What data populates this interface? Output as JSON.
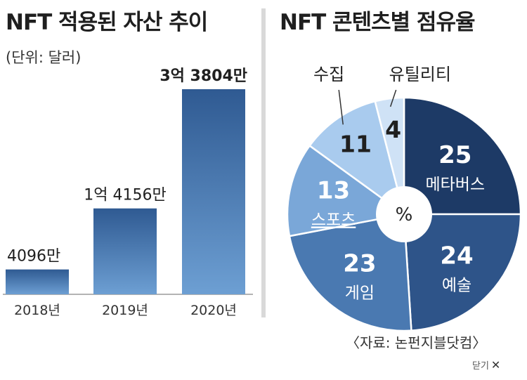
{
  "left_title": "NFT 적용된 자산 추이",
  "unit_label": "(단위: 달러)",
  "right_title": "NFT 콘텐츠별 점유율",
  "source": "〈자료: 논펀지블닷컴〉",
  "close_label": "닫기",
  "close_icon": "close-x-icon",
  "chart_data": [
    {
      "type": "bar",
      "title": "NFT 적용된 자산 추이",
      "unit": "달러",
      "categories": [
        "2018년",
        "2019년",
        "2020년"
      ],
      "values": [
        40960000,
        141560000,
        338040000
      ],
      "value_labels": [
        "4096만",
        "1억 4156만",
        "3억 3804만"
      ],
      "bar_color_top": "#2f5a92",
      "bar_color_bottom": "#6d9fd3",
      "grid": false
    },
    {
      "type": "pie",
      "title": "NFT 콘텐츠별 점유율",
      "center_label": "%",
      "slices": [
        {
          "label": "메타버스",
          "value": 25,
          "color": "#1d3a66",
          "label_color": "#ffffff",
          "outside": false
        },
        {
          "label": "예술",
          "value": 24,
          "color": "#2e5489",
          "label_color": "#ffffff",
          "outside": false
        },
        {
          "label": "게임",
          "value": 23,
          "color": "#4a79b1",
          "label_color": "#ffffff",
          "outside": false
        },
        {
          "label": "스포츠",
          "value": 13,
          "color": "#7aa7d8",
          "label_color": "#ffffff",
          "outside": false
        },
        {
          "label": "수집",
          "value": 11,
          "color": "#a9cbee",
          "label_color": "#1f1f1f",
          "outside": true
        },
        {
          "label": "유틸리티",
          "value": 4,
          "color": "#cfe2f6",
          "label_color": "#1f1f1f",
          "outside": true
        }
      ]
    }
  ]
}
